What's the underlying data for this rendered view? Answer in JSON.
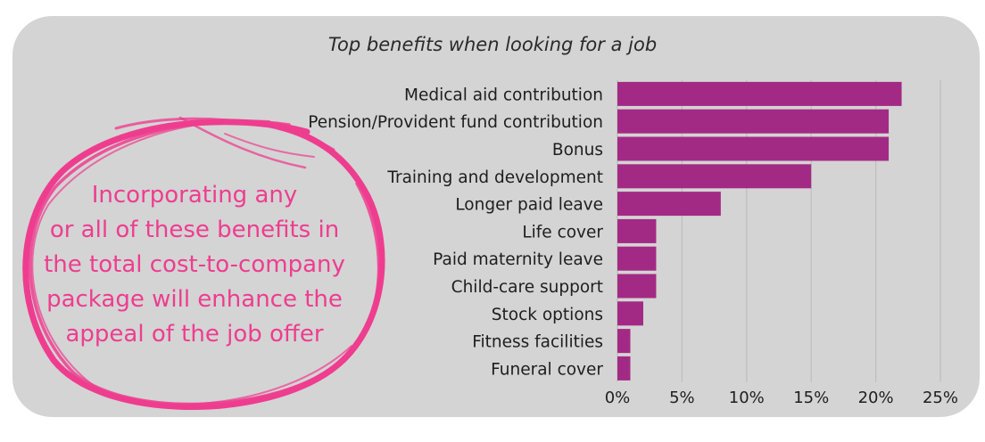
{
  "chart_data": {
    "type": "bar",
    "orientation": "horizontal",
    "title": "Top benefits when looking for a job",
    "categories": [
      "Medical aid contribution",
      "Pension/Provident fund contribution",
      "Bonus",
      "Training and development",
      "Longer paid leave",
      "Life cover",
      "Paid maternity leave",
      "Child-care support",
      "Stock options",
      "Fitness facilities",
      "Funeral cover"
    ],
    "values": [
      22,
      21,
      21,
      15,
      8,
      3,
      3,
      3,
      2,
      1,
      1
    ],
    "unit": "%",
    "xlim": [
      0,
      25
    ],
    "x_ticks": [
      "0%",
      "5%",
      "10%",
      "15%",
      "20%",
      "25%"
    ],
    "grid": true,
    "bar_color": "#a32a84"
  },
  "callout": {
    "lines": [
      "Incorporating any",
      "or all of these benefits in",
      "the total cost-to-company",
      "package will enhance the",
      "appeal of the job offer"
    ],
    "color": "#ee3d8f"
  }
}
